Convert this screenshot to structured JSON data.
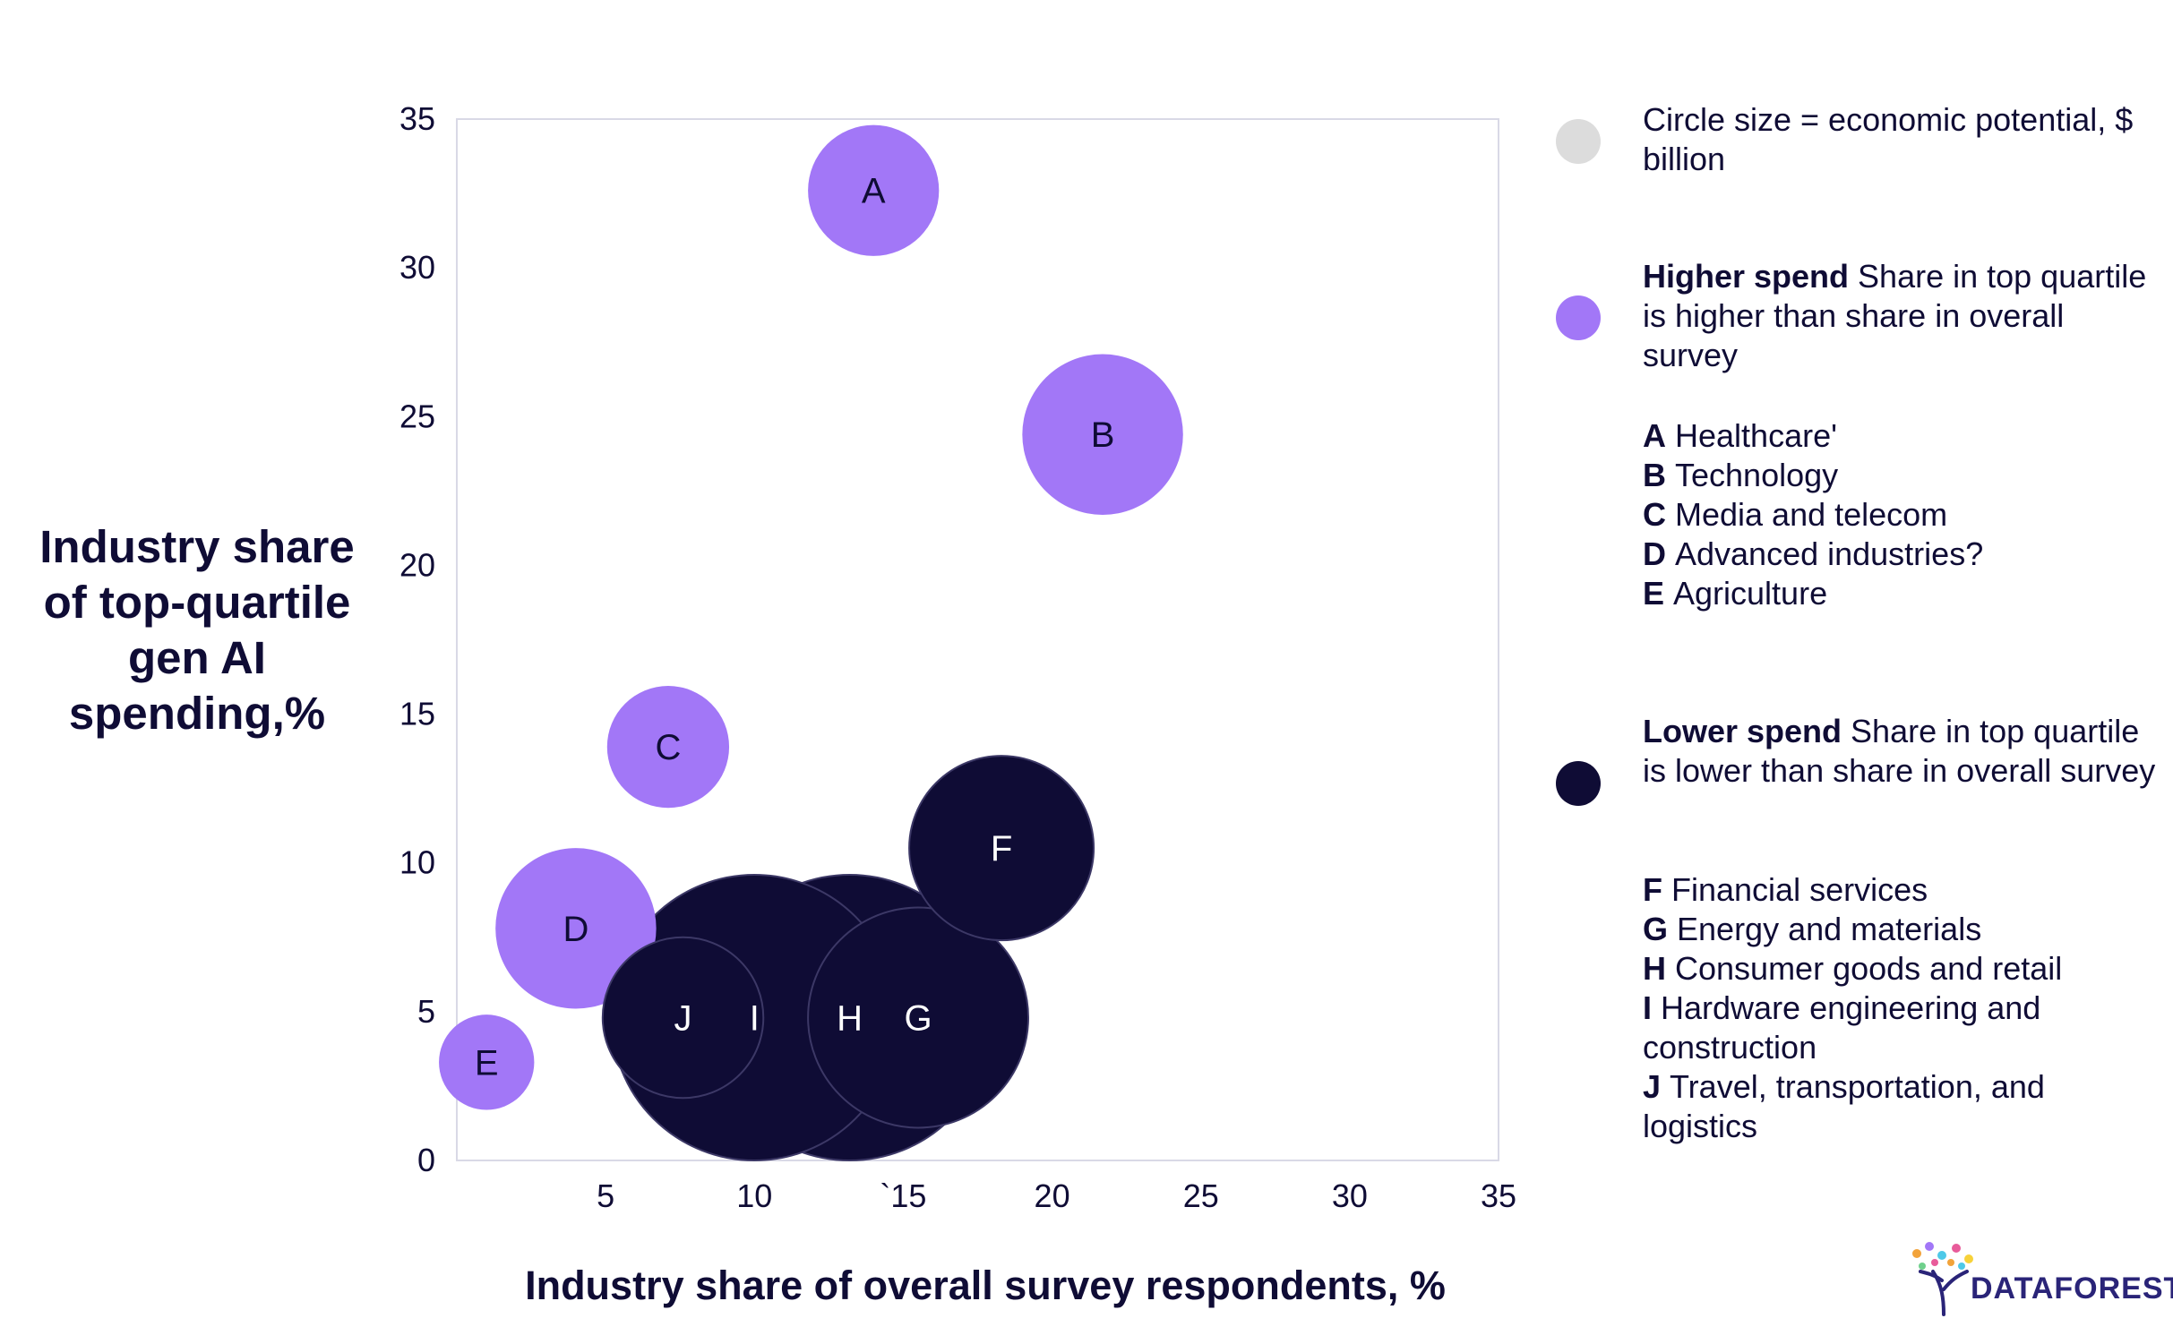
{
  "chart_data": {
    "type": "scatter",
    "title": "",
    "xlabel": "Industry share of overall survey respondents, %",
    "ylabel": "Industry share of top-quartile gen AI spending,%",
    "xlim": [
      0,
      35
    ],
    "ylim": [
      0,
      35
    ],
    "x_ticks": [
      "5",
      "10",
      "`15",
      "20",
      "25",
      "30",
      "35"
    ],
    "x_tick_values": [
      5,
      10,
      15,
      20,
      25,
      30,
      35
    ],
    "y_ticks": [
      "0",
      "5",
      "10",
      "15",
      "20",
      "25",
      "30",
      "35"
    ],
    "y_tick_values": [
      0,
      5,
      10,
      15,
      20,
      25,
      30,
      35
    ],
    "bubble_size_label": "Circle size = economic potential, $ billion",
    "colors": {
      "higher": "#a277f7",
      "lower": "#0f0c35",
      "size_key": "#dcdcdc"
    },
    "points": [
      {
        "label": "A",
        "x": 14.0,
        "y": 32.6,
        "size": 2.2,
        "group": "higher"
      },
      {
        "label": "B",
        "x": 21.7,
        "y": 24.4,
        "size": 2.7,
        "group": "higher"
      },
      {
        "label": "C",
        "x": 7.1,
        "y": 13.9,
        "size": 2.05,
        "group": "higher"
      },
      {
        "label": "D",
        "x": 4.0,
        "y": 7.8,
        "size": 2.7,
        "group": "higher"
      },
      {
        "label": "E",
        "x": 1.0,
        "y": 3.3,
        "size": 1.6,
        "group": "higher"
      },
      {
        "label": "F",
        "x": 18.3,
        "y": 10.5,
        "size": 3.1,
        "group": "lower"
      },
      {
        "label": "G",
        "x": 15.5,
        "y": 4.8,
        "size": 3.7,
        "group": "lower"
      },
      {
        "label": "H",
        "x": 13.2,
        "y": 4.8,
        "size": 4.8,
        "group": "lower"
      },
      {
        "label": "I",
        "x": 10.0,
        "y": 4.8,
        "size": 4.8,
        "group": "lower"
      },
      {
        "label": "J",
        "x": 7.6,
        "y": 4.8,
        "size": 2.7,
        "group": "lower"
      }
    ]
  },
  "legend": {
    "size_key_text": "Circle size = economic potential, $ billion",
    "higher": {
      "title": "Higher spend",
      "description": "Share in top quartile is higher than share in overall survey",
      "items": [
        {
          "key": "A",
          "name": "Healthcare'"
        },
        {
          "key": "B",
          "name": "Technology"
        },
        {
          "key": "C",
          "name": "Media and telecom"
        },
        {
          "key": "D",
          "name": "Advanced industries?"
        },
        {
          "key": "E",
          "name": "Agriculture"
        }
      ]
    },
    "lower": {
      "title": "Lower spend",
      "description": "Share in top quartile is lower than share in overall survey",
      "items": [
        {
          "key": "F",
          "name": "Financial services"
        },
        {
          "key": "G",
          "name": "Energy and materials"
        },
        {
          "key": "H",
          "name": "Consumer goods and retail"
        },
        {
          "key": "I",
          "name": "Hardware engineering and construction"
        },
        {
          "key": "J",
          "name": "Travel, transportation, and logistics"
        }
      ]
    }
  },
  "logo": {
    "text": "DATAFOREST"
  }
}
